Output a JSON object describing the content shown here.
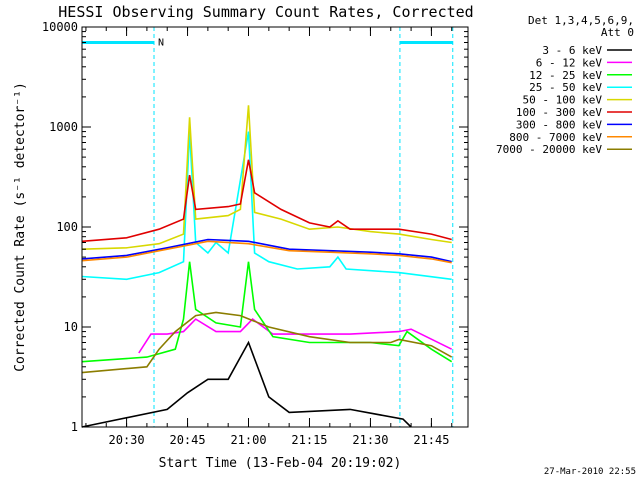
{
  "chart_data": {
    "type": "line",
    "title": "HESSI Observing Summary Count Rates, Corrected",
    "xlabel": "Start Time (13-Feb-04 20:19:02)",
    "ylabel": "Corrected Count Rate (s⁻¹ detector⁻¹)",
    "y_scale": "log",
    "ylim": [
      1,
      10000
    ],
    "xlim": [
      "20:19:02",
      "21:54:00"
    ],
    "y_ticks": [
      "1",
      "10",
      "100",
      "1000",
      "10000"
    ],
    "x_ticks": [
      "20:30",
      "20:45",
      "21:00",
      "21:15",
      "21:30",
      "21:45"
    ],
    "grid": false,
    "legend_position": "right",
    "legend_header": [
      "Det 1,3,4,5,6,9,",
      "Att 0"
    ],
    "footer": "27-Mar-2010 22:55",
    "annotations": {
      "night_label": "N",
      "night_periods": [
        {
          "start": "20:19:02",
          "end": "20:36:45"
        },
        {
          "start": "21:37:15",
          "end": "21:50:15"
        }
      ]
    },
    "series": [
      {
        "name": "3 - 6 keV",
        "color": "#000000",
        "points": [
          [
            "20:19",
            1
          ],
          [
            "20:40",
            1.5
          ],
          [
            "20:45",
            2.2
          ],
          [
            "20:50",
            3
          ],
          [
            "20:55",
            3
          ],
          [
            "21:00",
            7
          ],
          [
            "21:05",
            2
          ],
          [
            "21:10",
            1.4
          ],
          [
            "21:25",
            1.5
          ],
          [
            "21:38",
            1.2
          ],
          [
            "21:40",
            1
          ]
        ]
      },
      {
        "name": "6 - 12 keV",
        "color": "#ff00ff",
        "points": [
          [
            "20:33",
            5.5
          ],
          [
            "20:36",
            8.5
          ],
          [
            "20:40",
            8.5
          ],
          [
            "20:44",
            9
          ],
          [
            "20:47",
            12
          ],
          [
            "20:52",
            9
          ],
          [
            "20:58",
            9
          ],
          [
            "21:01",
            12
          ],
          [
            "21:06",
            8.5
          ],
          [
            "21:15",
            8.5
          ],
          [
            "21:25",
            8.5
          ],
          [
            "21:37",
            9
          ],
          [
            "21:40",
            9.5
          ],
          [
            "21:50",
            6
          ]
        ]
      },
      {
        "name": "12 - 25 keV",
        "color": "#00ff00",
        "points": [
          [
            "20:19",
            4.5
          ],
          [
            "20:35",
            5
          ],
          [
            "20:42",
            6
          ],
          [
            "20:44",
            12
          ],
          [
            "20:45.5",
            45
          ],
          [
            "20:47",
            15
          ],
          [
            "20:52",
            11
          ],
          [
            "20:58",
            10
          ],
          [
            "21:00",
            45
          ],
          [
            "21:01.5",
            15
          ],
          [
            "21:06",
            8
          ],
          [
            "21:15",
            7
          ],
          [
            "21:30",
            7
          ],
          [
            "21:37",
            6.5
          ],
          [
            "21:39",
            9
          ],
          [
            "21:45",
            6
          ],
          [
            "21:50",
            4.5
          ]
        ]
      },
      {
        "name": "25 - 50 keV",
        "color": "#00ffff",
        "points": [
          [
            "20:19",
            32
          ],
          [
            "20:30",
            30
          ],
          [
            "20:38",
            35
          ],
          [
            "20:44",
            45
          ],
          [
            "20:45.5",
            900
          ],
          [
            "20:47",
            70
          ],
          [
            "20:50",
            55
          ],
          [
            "20:52",
            70
          ],
          [
            "20:55",
            55
          ],
          [
            "21:00",
            900
          ],
          [
            "21:01.5",
            55
          ],
          [
            "21:05",
            45
          ],
          [
            "21:12",
            38
          ],
          [
            "21:20",
            40
          ],
          [
            "21:22",
            50
          ],
          [
            "21:24",
            38
          ],
          [
            "21:37",
            35
          ],
          [
            "21:50",
            30
          ]
        ]
      },
      {
        "name": "50 - 100 keV",
        "color": "#d8d800",
        "points": [
          [
            "20:19",
            60
          ],
          [
            "20:30",
            62
          ],
          [
            "20:38",
            68
          ],
          [
            "20:44",
            85
          ],
          [
            "20:45.5",
            1250
          ],
          [
            "20:47",
            120
          ],
          [
            "20:55",
            130
          ],
          [
            "20:58",
            150
          ],
          [
            "21:00",
            1650
          ],
          [
            "21:01.5",
            140
          ],
          [
            "21:08",
            120
          ],
          [
            "21:15",
            95
          ],
          [
            "21:22",
            100
          ],
          [
            "21:30",
            90
          ],
          [
            "21:37",
            85
          ],
          [
            "21:45",
            75
          ],
          [
            "21:50",
            70
          ]
        ]
      },
      {
        "name": "100 - 300 keV",
        "color": "#e00000",
        "points": [
          [
            "20:19",
            72
          ],
          [
            "20:30",
            78
          ],
          [
            "20:38",
            95
          ],
          [
            "20:44",
            120
          ],
          [
            "20:45.5",
            330
          ],
          [
            "20:47",
            150
          ],
          [
            "20:55",
            160
          ],
          [
            "20:58",
            170
          ],
          [
            "21:00",
            470
          ],
          [
            "21:01.5",
            220
          ],
          [
            "21:08",
            150
          ],
          [
            "21:15",
            110
          ],
          [
            "21:20",
            100
          ],
          [
            "21:22",
            115
          ],
          [
            "21:25",
            95
          ],
          [
            "21:37",
            95
          ],
          [
            "21:45",
            85
          ],
          [
            "21:50",
            75
          ]
        ]
      },
      {
        "name": "300 - 800 keV",
        "color": "#0000ff",
        "points": [
          [
            "20:19",
            48
          ],
          [
            "20:30",
            52
          ],
          [
            "20:40",
            62
          ],
          [
            "20:50",
            75
          ],
          [
            "21:00",
            72
          ],
          [
            "21:10",
            60
          ],
          [
            "21:20",
            58
          ],
          [
            "21:30",
            56
          ],
          [
            "21:37",
            54
          ],
          [
            "21:45",
            50
          ],
          [
            "21:50",
            45
          ]
        ]
      },
      {
        "name": "800 - 7000 keV",
        "color": "#ff8800",
        "points": [
          [
            "20:19",
            46
          ],
          [
            "20:30",
            50
          ],
          [
            "20:40",
            60
          ],
          [
            "20:50",
            72
          ],
          [
            "21:00",
            68
          ],
          [
            "21:10",
            58
          ],
          [
            "21:20",
            56
          ],
          [
            "21:30",
            54
          ],
          [
            "21:37",
            52
          ],
          [
            "21:45",
            48
          ],
          [
            "21:50",
            44
          ]
        ]
      },
      {
        "name": "7000 - 20000 keV",
        "color": "#8b7d00",
        "points": [
          [
            "20:19",
            3.5
          ],
          [
            "20:35",
            4
          ],
          [
            "20:38",
            6
          ],
          [
            "20:42",
            9
          ],
          [
            "20:47",
            13
          ],
          [
            "20:52",
            14
          ],
          [
            "20:58",
            13
          ],
          [
            "21:05",
            10
          ],
          [
            "21:15",
            8
          ],
          [
            "21:25",
            7
          ],
          [
            "21:35",
            7
          ],
          [
            "21:37",
            7.5
          ],
          [
            "21:45",
            6.5
          ],
          [
            "21:50",
            5
          ]
        ]
      }
    ]
  }
}
